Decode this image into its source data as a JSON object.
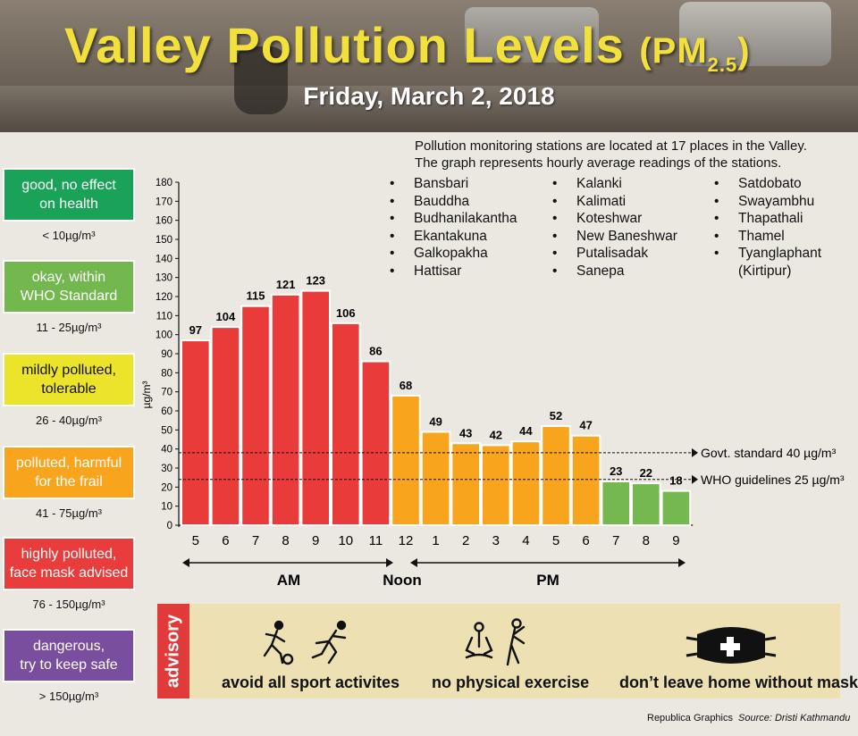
{
  "header": {
    "title_main": "Valley Pollution Levels",
    "title_pm": "(PM",
    "title_sub": "2.5",
    "title_close": ")",
    "date": "Friday, March 2, 2018"
  },
  "legend": [
    {
      "label_1": "good, no effect",
      "label_2": "on health",
      "range": "< 10µg/m³",
      "color": "#1aa358"
    },
    {
      "label_1": "okay, within",
      "label_2": "WHO Standard",
      "range": "11 - 25µg/m³",
      "color": "#72b84e"
    },
    {
      "label_1": "mildly polluted,",
      "label_2": "tolerable",
      "range": "26 - 40µg/m³",
      "color": "#ece42a"
    },
    {
      "label_1": "polluted, harmful",
      "label_2": "for the frail",
      "range": "41 - 75µg/m³",
      "color": "#f8a51d"
    },
    {
      "label_1": "highly polluted,",
      "label_2": "face mask advised",
      "range": "76 - 150µg/m³",
      "color": "#e93c3c"
    },
    {
      "label_1": "dangerous,",
      "label_2": "try to keep safe",
      "range": "> 150µg/m³",
      "color": "#7a4e9f"
    }
  ],
  "stations": {
    "intro_1": "Pollution monitoring stations are located at 17 places in the Valley.",
    "intro_2": "The graph represents hourly average readings of the stations.",
    "col1": [
      "Bansbari",
      "Bauddha",
      "Budhanilakantha",
      "Ekantakuna",
      "Galkopakha",
      "Hattisar"
    ],
    "col2": [
      "Kalanki",
      "Kalimati",
      "Koteshwar",
      "New Baneshwar",
      "Putalisadak",
      "Sanepa"
    ],
    "col3": [
      "Satdobato",
      "Swayambhu",
      "Thapathali",
      "Thamel",
      "Tyanglaphant"
    ],
    "col3_cont": "(Kirtipur)"
  },
  "chart_data": {
    "type": "bar",
    "categories": [
      "5",
      "6",
      "7",
      "8",
      "9",
      "10",
      "11",
      "12",
      "1",
      "2",
      "3",
      "4",
      "5",
      "6",
      "7",
      "8",
      "9"
    ],
    "values": [
      97,
      104,
      115,
      121,
      123,
      106,
      86,
      68,
      49,
      43,
      42,
      44,
      52,
      47,
      23,
      22,
      18
    ],
    "bar_colors": [
      "#ea3b3b",
      "#ea3b3b",
      "#ea3b3b",
      "#ea3b3b",
      "#ea3b3b",
      "#ea3b3b",
      "#ea3b3b",
      "#f8a51d",
      "#f8a51d",
      "#f8a51d",
      "#f8a51d",
      "#f8a51d",
      "#f8a51d",
      "#f8a51d",
      "#74b84f",
      "#74b84f",
      "#74b84f"
    ],
    "ylabel": "µg/m³",
    "ylim": [
      0,
      180
    ],
    "yticks": [
      0,
      10,
      20,
      30,
      40,
      50,
      60,
      70,
      80,
      90,
      100,
      110,
      120,
      130,
      140,
      150,
      160,
      170,
      180
    ],
    "reference_lines": [
      {
        "value": 40,
        "label": "Govt. standard 40 µg/m³",
        "plot_value": 38
      },
      {
        "value": 25,
        "label": "WHO guidelines 25 µg/m³",
        "plot_value": 24
      }
    ],
    "periods": {
      "am": "AM",
      "noon": "Noon",
      "pm": "PM"
    }
  },
  "advisory": {
    "tag": "advisory",
    "items": [
      {
        "label": "avoid all sport activites",
        "icon": "sport-icon"
      },
      {
        "label": "no physical exercise",
        "icon": "exercise-icon"
      },
      {
        "label": "don’t leave home without mask",
        "icon": "mask-icon"
      }
    ]
  },
  "credits": {
    "publisher": "Republica Graphics",
    "source": "Source: Dristi Kathmandu"
  }
}
